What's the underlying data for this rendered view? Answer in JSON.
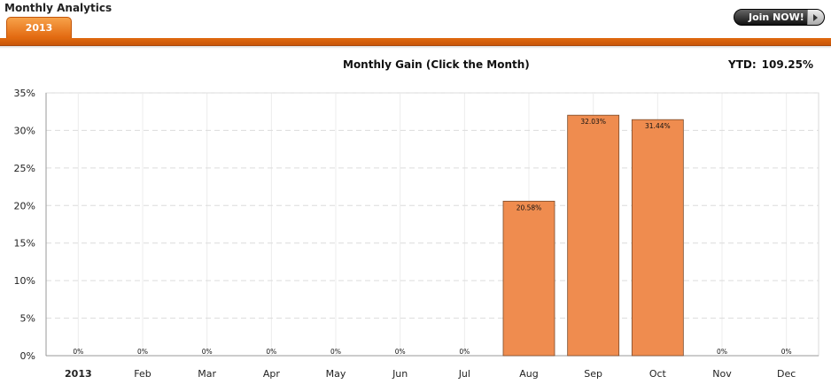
{
  "header": {
    "title": "Monthly Analytics",
    "tabs": [
      {
        "label": "2013",
        "active": true
      }
    ],
    "join_label": "Join NOW!"
  },
  "colors": {
    "accent": "#e2680f",
    "bar_fill": "#ef8c4f",
    "bar_stroke": "#7a4a2a"
  },
  "chart_data": {
    "type": "bar",
    "title": "Monthly Gain (Click the Month)",
    "ytd_label": "YTD:",
    "ytd_value": "109.25%",
    "categories": [
      "2013",
      "Feb",
      "Mar",
      "Apr",
      "May",
      "Jun",
      "Jul",
      "Aug",
      "Sep",
      "Oct",
      "Nov",
      "Dec"
    ],
    "values": [
      0,
      0,
      0,
      0,
      0,
      0,
      0,
      20.58,
      32.03,
      31.44,
      0,
      0
    ],
    "value_labels": [
      "0%",
      "0%",
      "0%",
      "0%",
      "0%",
      "0%",
      "0%",
      "20.58%",
      "32.03%",
      "31.44%",
      "0%",
      "0%"
    ],
    "ylim": [
      0,
      35
    ],
    "yticks": [
      0,
      5,
      10,
      15,
      20,
      25,
      30,
      35
    ],
    "ytick_labels": [
      "0%",
      "5%",
      "10%",
      "15%",
      "20%",
      "25%",
      "30%",
      "35%"
    ],
    "grid": true
  }
}
